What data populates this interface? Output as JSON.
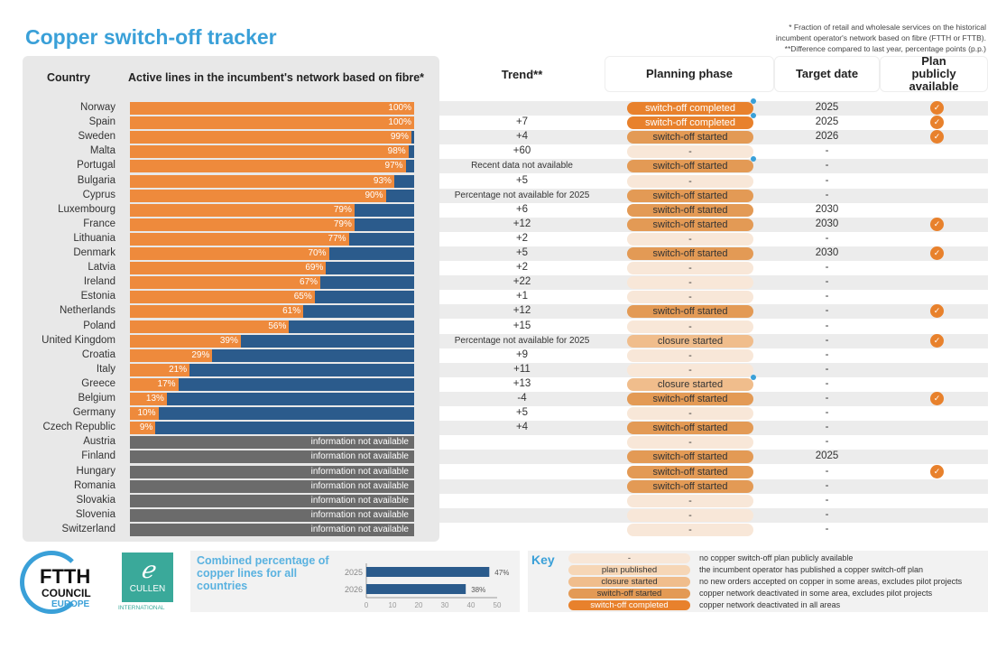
{
  "title": "Copper switch-off tracker",
  "notes": [
    "* Fraction of retail and wholesale services on the historical",
    "incumbent operator's network based on fibre (FTTH or FTTB).",
    "**Difference compared to last year, percentage points (p.p.)"
  ],
  "headers": {
    "country": "Country",
    "active": "Active lines in the incumbent's network based on fibre*",
    "trend": "Trend**",
    "phase": "Planning phase",
    "target": "Target date",
    "plan": "Plan publicly available"
  },
  "na_text": "information not available",
  "colors": {
    "fibre": "#ee8a3c",
    "copper": "#2b5b8c",
    "na": "#6b6b6b",
    "accent": "#3aa0d8"
  },
  "chart_data": {
    "type": "table",
    "title": "Copper switch-off tracker",
    "rows": [
      {
        "country": "Norway",
        "pct": 100,
        "label": "100%",
        "trend": "",
        "phase": "switch-off completed",
        "dot": true,
        "target": "2025",
        "plan": true
      },
      {
        "country": "Spain",
        "pct": 100,
        "label": "100%",
        "trend": "+7",
        "phase": "switch-off completed",
        "dot": true,
        "target": "2025",
        "plan": true
      },
      {
        "country": "Sweden",
        "pct": 99,
        "label": "99%",
        "trend": "+4",
        "phase": "switch-off started",
        "target": "2026",
        "plan": true
      },
      {
        "country": "Malta",
        "pct": 98,
        "label": "98%",
        "trend": "+60",
        "phase": "-",
        "target": "-",
        "plan": false
      },
      {
        "country": "Portugal",
        "pct": 97,
        "label": "97%",
        "trend": "Recent data not available",
        "phase": "switch-off started",
        "dot": true,
        "target": "-",
        "plan": false
      },
      {
        "country": "Bulgaria",
        "pct": 93,
        "label": "93%",
        "trend": "+5",
        "phase": "-",
        "target": "-",
        "plan": false
      },
      {
        "country": "Cyprus",
        "pct": 90,
        "label": "90%",
        "trend": "Percentage not available for 2025",
        "phase": "switch-off started",
        "target": "-",
        "plan": false
      },
      {
        "country": "Luxembourg",
        "pct": 79,
        "label": "79%",
        "trend": "+6",
        "phase": "switch-off started",
        "target": "2030",
        "plan": false
      },
      {
        "country": "France",
        "pct": 79,
        "label": "79%",
        "trend": "+12",
        "phase": "switch-off started",
        "target": "2030",
        "plan": true
      },
      {
        "country": "Lithuania",
        "pct": 77,
        "label": "77%",
        "trend": "+2",
        "phase": "-",
        "target": "-",
        "plan": false
      },
      {
        "country": "Denmark",
        "pct": 70,
        "label": "70%",
        "trend": "+5",
        "phase": "switch-off started",
        "target": "2030",
        "plan": true
      },
      {
        "country": "Latvia",
        "pct": 69,
        "label": "69%",
        "trend": "+2",
        "phase": "-",
        "target": "-",
        "plan": false
      },
      {
        "country": "Ireland",
        "pct": 67,
        "label": "67%",
        "trend": "+22",
        "phase": "-",
        "target": "-",
        "plan": false
      },
      {
        "country": "Estonia",
        "pct": 65,
        "label": "65%",
        "trend": "+1",
        "phase": "-",
        "target": "-",
        "plan": false
      },
      {
        "country": "Netherlands",
        "pct": 61,
        "label": "61%",
        "trend": "+12",
        "phase": "switch-off started",
        "target": "-",
        "plan": true
      },
      {
        "country": "Poland",
        "pct": 56,
        "label": "56%",
        "trend": "+15",
        "phase": "-",
        "target": "-",
        "plan": false
      },
      {
        "country": "United Kingdom",
        "pct": 39,
        "label": "39%",
        "trend": "Percentage not available for 2025",
        "phase": "closure started",
        "target": "-",
        "plan": true
      },
      {
        "country": "Croatia",
        "pct": 29,
        "label": "29%",
        "trend": "+9",
        "phase": "-",
        "target": "-",
        "plan": false
      },
      {
        "country": "Italy",
        "pct": 21,
        "label": "21%",
        "trend": "+11",
        "phase": "-",
        "target": "-",
        "plan": false
      },
      {
        "country": "Greece",
        "pct": 17,
        "label": "17%",
        "trend": "+13",
        "phase": "closure started",
        "dot": true,
        "target": "-",
        "plan": false
      },
      {
        "country": "Belgium",
        "pct": 13,
        "label": "13%",
        "trend": "-4",
        "phase": "switch-off started",
        "target": "-",
        "plan": true
      },
      {
        "country": "Germany",
        "pct": 10,
        "label": "10%",
        "trend": "+5",
        "phase": "-",
        "target": "-",
        "plan": false
      },
      {
        "country": "Czech Republic",
        "pct": 9,
        "label": "9%",
        "trend": "+4",
        "phase": "switch-off started",
        "target": "-",
        "plan": false
      },
      {
        "country": "Austria",
        "pct": null,
        "trend": "",
        "phase": "-",
        "target": "-",
        "plan": false
      },
      {
        "country": "Finland",
        "pct": null,
        "trend": "",
        "phase": "switch-off started",
        "target": "2025",
        "plan": false
      },
      {
        "country": "Hungary",
        "pct": null,
        "trend": "",
        "phase": "switch-off started",
        "target": "-",
        "plan": true
      },
      {
        "country": "Romania",
        "pct": null,
        "trend": "",
        "phase": "switch-off started",
        "target": "-",
        "plan": false
      },
      {
        "country": "Slovakia",
        "pct": null,
        "trend": "",
        "phase": "-",
        "target": "-",
        "plan": false
      },
      {
        "country": "Slovenia",
        "pct": null,
        "trend": "",
        "phase": "-",
        "target": "-",
        "plan": false
      },
      {
        "country": "Switzerland",
        "pct": null,
        "trend": "",
        "phase": "-",
        "target": "-",
        "plan": false
      }
    ]
  },
  "combined": {
    "title": "Combined percentage of copper lines for all countries",
    "type": "bar",
    "categories": [
      "2025",
      "2026"
    ],
    "values": [
      47,
      38
    ],
    "labels": [
      "47%",
      "38%"
    ],
    "xticks": [
      "0",
      "10",
      "20",
      "30",
      "40",
      "50"
    ],
    "xlim": [
      0,
      50
    ]
  },
  "logos": {
    "ftth": [
      "FTTH",
      "COUNCIL",
      "EUROPE"
    ],
    "cullen": [
      "CULLEN",
      "INTERNATIONAL"
    ]
  },
  "key": {
    "title": "Key",
    "items": [
      {
        "phase": "-",
        "desc": "no copper switch-off plan publicly available"
      },
      {
        "phase": "plan published",
        "desc": "the incumbent operator has published a copper switch-off plan"
      },
      {
        "phase": "closure started",
        "desc": "no new orders accepted on copper in some areas, excludes pilot projects"
      },
      {
        "phase": "switch-off started",
        "desc": "copper network deactivated in some area, excludes pilot projects"
      },
      {
        "phase": "switch-off completed",
        "desc": "copper network deactivated in all areas"
      }
    ]
  }
}
